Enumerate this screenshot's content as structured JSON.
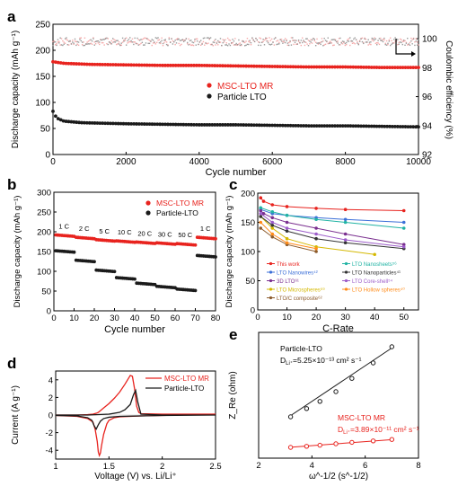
{
  "colors": {
    "red": "#e8231e",
    "black": "#1a1a1a",
    "pink": "#f49a9a",
    "gray": "#8a8a8a"
  },
  "chart_data": [
    {
      "panel": "a",
      "type": "scatter",
      "xlabel": "Cycle number",
      "ylabel": "Discharge capacity (mAh g⁻¹)",
      "y2label": "Coulombic efficiency (%)",
      "xlim": [
        0,
        10000
      ],
      "ylim": [
        0,
        250
      ],
      "y2lim": [
        92,
        101
      ],
      "xticks": [
        0,
        2000,
        4000,
        6000,
        8000,
        10000
      ],
      "yticks": [
        0,
        50,
        100,
        150,
        200,
        250
      ],
      "y2ticks": [
        92,
        94,
        96,
        98,
        100
      ],
      "legend": [
        "MSC-LTO MR",
        "Particle LTO"
      ],
      "legend_position": "center",
      "series": [
        {
          "name": "MSC-LTO MR",
          "color": "red",
          "x": [
            0,
            300,
            1000,
            2000,
            3000,
            4000,
            5000,
            6000,
            7000,
            8000,
            9000,
            10000
          ],
          "values": [
            178,
            175,
            173,
            172,
            171,
            171,
            170,
            169,
            168,
            168,
            167,
            167
          ]
        },
        {
          "name": "Particle LTO",
          "color": "black",
          "x": [
            0,
            100,
            300,
            800,
            2000,
            3000,
            4000,
            5000,
            6000,
            7000,
            8000,
            9000,
            10000
          ],
          "values": [
            83,
            70,
            64,
            61,
            59,
            58,
            57,
            57,
            56,
            55,
            55,
            54,
            53
          ]
        }
      ],
      "efficiency_series": [
        {
          "color": "pink",
          "value": 99.8
        },
        {
          "color": "gray",
          "value": 99.8
        }
      ]
    },
    {
      "panel": "b",
      "type": "scatter",
      "xlabel": "Cycle number",
      "ylabel": "Discharge capacity (mAh g⁻¹)",
      "xlim": [
        0,
        80
      ],
      "ylim": [
        0,
        300
      ],
      "xticks": [
        0,
        10,
        20,
        30,
        40,
        50,
        60,
        70,
        80
      ],
      "yticks": [
        0,
        50,
        100,
        150,
        200,
        250,
        300
      ],
      "legend": [
        "MSC-LTO MR",
        "Particle-LTO"
      ],
      "legend_position": "top-right",
      "rate_labels": [
        {
          "text": "1 C",
          "x": 5
        },
        {
          "text": "2 C",
          "x": 15
        },
        {
          "text": "5 C",
          "x": 25
        },
        {
          "text": "10 C",
          "x": 35
        },
        {
          "text": "20 C",
          "x": 45
        },
        {
          "text": "30 C",
          "x": 55
        },
        {
          "text": "50 C",
          "x": 65
        },
        {
          "text": "1 C",
          "x": 75
        }
      ],
      "series": [
        {
          "name": "MSC-LTO MR",
          "color": "red",
          "segment_values": [
            192,
            186,
            180,
            177,
            174,
            172,
            170,
            186
          ]
        },
        {
          "name": "Particle-LTO",
          "color": "black",
          "segment_values": [
            152,
            128,
            103,
            84,
            70,
            62,
            55,
            140
          ]
        }
      ]
    },
    {
      "panel": "c",
      "type": "line",
      "xlabel": "C-Rate",
      "ylabel": "Discharge capacity (mAh g⁻¹)",
      "xlim": [
        0,
        55
      ],
      "ylim": [
        0,
        200
      ],
      "xticks": [
        0,
        10,
        20,
        30,
        40,
        50
      ],
      "yticks": [
        0,
        50,
        100,
        150,
        200
      ],
      "legend_position": "bottom",
      "series": [
        {
          "name": "This work",
          "color": "#e8231e",
          "marker": "star",
          "x": [
            1,
            2,
            5,
            10,
            20,
            30,
            50
          ],
          "values": [
            192,
            186,
            180,
            177,
            174,
            172,
            170
          ]
        },
        {
          "name": "LTO Nanowires⁴²",
          "color": "#3b6fd8",
          "marker": "triangle",
          "x": [
            1,
            5,
            10,
            20,
            30,
            50
          ],
          "values": [
            172,
            165,
            162,
            158,
            155,
            150
          ]
        },
        {
          "name": "3D LTO⁶¹",
          "color": "#7a2f8f",
          "marker": "circle",
          "x": [
            1,
            2,
            5,
            10,
            20,
            30,
            50
          ],
          "values": [
            170,
            165,
            158,
            150,
            140,
            130,
            112
          ]
        },
        {
          "name": "LTO Microspheres⁵⁹",
          "color": "#d4b800",
          "marker": "diamond",
          "x": [
            1,
            5,
            10,
            20,
            40
          ],
          "values": [
            160,
            140,
            122,
            108,
            95
          ]
        },
        {
          "name": "LTO/C composite⁶²",
          "color": "#8b5a2b",
          "marker": "square",
          "x": [
            1,
            5,
            10,
            20
          ],
          "values": [
            140,
            125,
            112,
            100
          ]
        },
        {
          "name": "LTO Nanosheets⁵⁶",
          "color": "#21b3a4",
          "marker": "triangle-down",
          "x": [
            1,
            5,
            10,
            20,
            30,
            50
          ],
          "values": [
            175,
            168,
            162,
            155,
            150,
            140
          ]
        },
        {
          "name": "LTO Nanoparticles⁴¹",
          "color": "#333333",
          "marker": "square",
          "x": [
            1,
            5,
            10,
            20,
            30,
            50
          ],
          "values": [
            160,
            145,
            135,
            122,
            115,
            105
          ]
        },
        {
          "name": "LTO Core-shell⁵⁴",
          "color": "#9c5cc9",
          "marker": "triangle-left",
          "x": [
            1,
            5,
            10,
            20,
            30,
            50
          ],
          "values": [
            165,
            150,
            140,
            130,
            120,
            108
          ]
        },
        {
          "name": "LTO Hollow spheres⁴⁰",
          "color": "#ff8c1a",
          "marker": "hexagon",
          "x": [
            1,
            5,
            10,
            20
          ],
          "values": [
            150,
            130,
            115,
            105
          ]
        }
      ]
    },
    {
      "panel": "d",
      "type": "line",
      "xlabel": "Voltage (V) vs. Li/Li⁺",
      "ylabel": "Current (A g⁻¹)",
      "xlim": [
        1.0,
        2.5
      ],
      "ylim": [
        -5,
        5
      ],
      "xticks": [
        1.0,
        1.5,
        2.0,
        2.5
      ],
      "yticks": [
        -4,
        -2,
        0,
        2,
        4
      ],
      "legend": [
        "MSC-LTO MR",
        "Particle-LTO"
      ],
      "legend_position": "top-right",
      "series": [
        {
          "name": "MSC-LTO MR",
          "color": "red",
          "x": [
            1.0,
            1.2,
            1.3,
            1.35,
            1.38,
            1.4,
            1.42,
            1.45,
            1.5,
            1.55,
            1.6,
            1.65,
            1.68,
            1.7,
            1.72,
            1.74,
            1.76,
            1.78,
            1.8,
            2.0,
            2.5,
            2.0,
            1.8,
            1.7,
            1.6,
            1.55,
            1.5,
            1.48,
            1.45,
            1.43,
            1.42,
            1.41,
            1.4,
            1.39,
            1.37,
            1.35,
            1.3,
            1.2,
            1.0
          ],
          "values": [
            0,
            0,
            0.05,
            0.1,
            0.2,
            0.3,
            0.5,
            0.8,
            1.3,
            1.9,
            2.6,
            3.5,
            4.1,
            4.5,
            4.4,
            3.0,
            1.0,
            0.3,
            0.15,
            0.1,
            0.1,
            -0.05,
            -0.1,
            -0.15,
            -0.2,
            -0.3,
            -0.6,
            -1.0,
            -2.2,
            -3.5,
            -4.3,
            -4.6,
            -4.2,
            -3.0,
            -1.6,
            -0.8,
            -0.4,
            -0.15,
            -0.05
          ]
        },
        {
          "name": "Particle-LTO",
          "color": "black",
          "x": [
            1.0,
            1.3,
            1.5,
            1.6,
            1.65,
            1.7,
            1.73,
            1.75,
            1.77,
            1.8,
            2.0,
            2.5,
            2.0,
            1.8,
            1.6,
            1.5,
            1.45,
            1.42,
            1.4,
            1.38,
            1.36,
            1.34,
            1.3,
            1.2,
            1.0
          ],
          "values": [
            0,
            0,
            0.1,
            0.3,
            0.6,
            1.2,
            2.3,
            2.8,
            1.5,
            0.1,
            0,
            0,
            -0.05,
            -0.1,
            -0.15,
            -0.25,
            -0.4,
            -0.7,
            -1.1,
            -1.6,
            -1.2,
            -0.6,
            -0.3,
            -0.1,
            -0.05
          ]
        }
      ]
    },
    {
      "panel": "e",
      "type": "scatter",
      "xlabel": "ω^-1/2 (s^-1/2)",
      "ylabel": "Z_Re (ohm)",
      "xlim": [
        2,
        8
      ],
      "ylim": [
        0,
        350
      ],
      "xticks": [
        2,
        4,
        6,
        8
      ],
      "series": [
        {
          "name": "Particle-LTO",
          "color": "black",
          "x": [
            3.2,
            3.8,
            4.3,
            4.9,
            5.5,
            6.3,
            7.0
          ],
          "values": [
            115,
            138,
            158,
            185,
            222,
            265,
            310
          ]
        },
        {
          "name": "MSC-LTO MR",
          "color": "red",
          "x": [
            3.2,
            3.8,
            4.3,
            4.9,
            5.5,
            6.3,
            7.0
          ],
          "values": [
            30,
            33,
            36,
            40,
            44,
            48,
            52
          ]
        }
      ]
    }
  ],
  "annotations": {
    "labels": {
      "a": "a",
      "b": "b",
      "c": "c",
      "d": "d",
      "e": "e"
    },
    "a_legend": {
      "msc": "MSC-LTO MR",
      "particle": "Particle LTO"
    },
    "b_legend": {
      "msc": "MSC-LTO MR",
      "particle": "Particle-LTO"
    },
    "d_legend": {
      "msc": "MSC-LTO MR",
      "particle": "Particle-LTO"
    },
    "c_legend": [
      {
        "name": "This work",
        "color": "#e8231e"
      },
      {
        "name": "LTO Nanosheets⁵⁶",
        "color": "#21b3a4"
      },
      {
        "name": "LTO Nanowires⁴²",
        "color": "#3b6fd8"
      },
      {
        "name": "LTO Nanoparticles⁴¹",
        "color": "#333333"
      },
      {
        "name": "3D LTO⁶¹",
        "color": "#7a2f8f"
      },
      {
        "name": "LTO Core-shell⁵⁴",
        "color": "#9c5cc9"
      },
      {
        "name": "LTO Microspheres⁵⁹",
        "color": "#d4b800"
      },
      {
        "name": "LTO Hollow spheres⁴⁰",
        "color": "#ff8c1a"
      },
      {
        "name": "LTO/C composite⁶²",
        "color": "#8b5a2b"
      },
      {
        "name": "",
        "color": ""
      }
    ],
    "e_particle_name": "Particle-LTO",
    "e_particle_d": "D",
    "e_particle_d_sub": "Li⁺",
    "e_particle_d_val": "=5.25×10⁻¹³ cm² s⁻¹",
    "e_msc_name": "MSC-LTO MR",
    "e_msc_d": "D",
    "e_msc_d_sub": "Li⁺",
    "e_msc_d_val": "=3.89×10⁻¹¹ cm² s⁻¹"
  }
}
